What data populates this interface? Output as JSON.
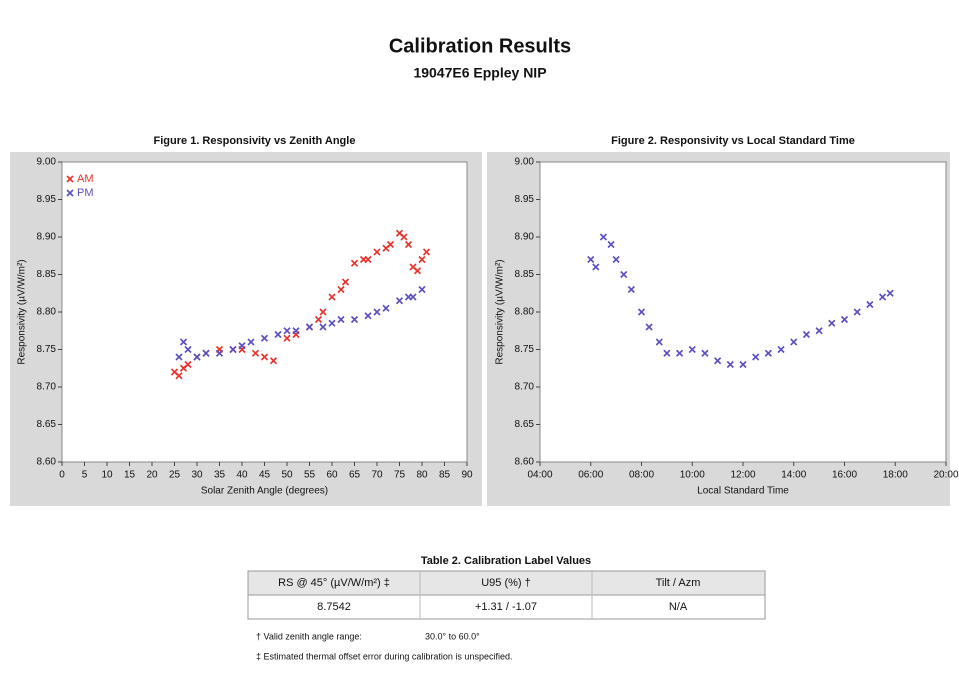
{
  "header": {
    "title": "Calibration Results",
    "subtitle": "19047E6 Eppley NIP"
  },
  "chart_data": [
    {
      "type": "scatter",
      "title": "Figure 1.  Responsivity vs Zenith Angle",
      "x_label": "Solar Zenith Angle (degrees)",
      "y_label": "Responsivity (µV/W/m²)",
      "xlim": [
        0,
        90
      ],
      "xticks": [
        0,
        5,
        10,
        15,
        20,
        25,
        30,
        35,
        40,
        45,
        50,
        55,
        60,
        65,
        70,
        75,
        80,
        85,
        90
      ],
      "ylim": [
        8.6,
        9.0
      ],
      "yticks": [
        {
          "value": 8.6,
          "label": "8.60"
        },
        8.65,
        {
          "value": 8.7,
          "label": "8.70"
        },
        8.75,
        {
          "value": 8.8,
          "label": "8.80"
        },
        8.85,
        {
          "value": 8.9,
          "label": "8.90"
        },
        8.95,
        {
          "value": 9.0,
          "label": "9.00"
        }
      ],
      "legend": "top-left",
      "series": [
        {
          "name": "AM",
          "color": "#e8322c",
          "x": [
            25,
            26,
            27,
            28,
            30,
            32,
            35,
            38,
            40,
            43,
            45,
            47,
            50,
            52,
            55,
            57,
            58,
            60,
            62,
            63,
            65,
            67,
            68,
            70,
            72,
            73,
            75,
            76,
            77,
            78,
            79,
            80,
            81
          ],
          "values": [
            8.72,
            8.715,
            8.725,
            8.73,
            8.74,
            8.745,
            8.75,
            8.75,
            8.75,
            8.745,
            8.74,
            8.735,
            8.765,
            8.77,
            8.78,
            8.79,
            8.8,
            8.82,
            8.83,
            8.84,
            8.865,
            8.87,
            8.87,
            8.88,
            8.885,
            8.89,
            8.905,
            8.9,
            8.89,
            8.86,
            8.855,
            8.87,
            8.88
          ]
        },
        {
          "name": "PM",
          "color": "#5a4fbf",
          "x": [
            26,
            27,
            28,
            30,
            32,
            35,
            38,
            40,
            42,
            45,
            48,
            50,
            52,
            55,
            58,
            60,
            62,
            65,
            68,
            70,
            72,
            75,
            77,
            78,
            80
          ],
          "values": [
            8.74,
            8.76,
            8.75,
            8.74,
            8.745,
            8.745,
            8.75,
            8.755,
            8.76,
            8.765,
            8.77,
            8.775,
            8.775,
            8.78,
            8.78,
            8.785,
            8.79,
            8.79,
            8.795,
            8.8,
            8.805,
            8.815,
            8.82,
            8.82,
            8.83
          ]
        }
      ]
    },
    {
      "type": "scatter",
      "title": "Figure 2.  Responsivity vs Local Standard Time",
      "x_label": "Local Standard Time",
      "y_label": "Responsivity (µV/W/m²)",
      "xlim": [
        4,
        20
      ],
      "xticks": [
        {
          "value": 4,
          "label": "04:00"
        },
        {
          "value": 6,
          "label": "06:00"
        },
        {
          "value": 8,
          "label": "08:00"
        },
        {
          "value": 10,
          "label": "10:00"
        },
        {
          "value": 12,
          "label": "12:00"
        },
        {
          "value": 14,
          "label": "14:00"
        },
        {
          "value": 16,
          "label": "16:00"
        },
        {
          "value": 18,
          "label": "18:00"
        },
        {
          "value": 20,
          "label": "20:00"
        }
      ],
      "ylim": [
        8.6,
        9.0
      ],
      "yticks": [
        {
          "value": 8.6,
          "label": "8.60"
        },
        8.65,
        {
          "value": 8.7,
          "label": "8.70"
        },
        8.75,
        {
          "value": 8.8,
          "label": "8.80"
        },
        8.85,
        {
          "value": 8.9,
          "label": "8.90"
        },
        8.95,
        {
          "value": 9.0,
          "label": "9.00"
        }
      ],
      "color": "#5a4fbf",
      "x": [
        6.0,
        6.2,
        6.5,
        6.8,
        7.0,
        7.3,
        7.6,
        8.0,
        8.3,
        8.7,
        9.0,
        9.5,
        10.0,
        10.5,
        11.0,
        11.5,
        12.0,
        12.5,
        13.0,
        13.5,
        14.0,
        14.5,
        15.0,
        15.5,
        16.0,
        16.5,
        17.0,
        17.5,
        17.8
      ],
      "values": [
        8.87,
        8.86,
        8.9,
        8.89,
        8.87,
        8.85,
        8.83,
        8.8,
        8.78,
        8.76,
        8.745,
        8.745,
        8.75,
        8.745,
        8.735,
        8.73,
        8.73,
        8.74,
        8.745,
        8.75,
        8.76,
        8.77,
        8.775,
        8.785,
        8.79,
        8.8,
        8.81,
        8.82,
        8.825
      ]
    }
  ],
  "table": {
    "title": "Table 2.  Calibration Label Values",
    "header": [
      "RS @ 45° (µV/W/m²) ‡",
      "U95 (%) †",
      "Tilt / Azm"
    ],
    "rows": [
      [
        "8.7542",
        "+1.31 / -1.07",
        "N/A"
      ]
    ]
  },
  "footnotes": [
    "† Valid zenith angle range:",
    "30.0° to 60.0°",
    "‡ Estimated thermal offset error during calibration is unspecified."
  ]
}
